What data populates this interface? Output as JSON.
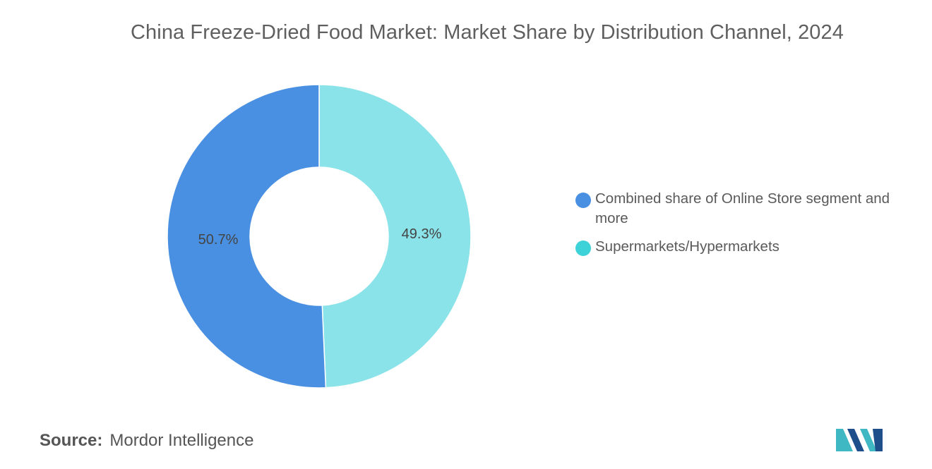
{
  "title": "China Freeze-Dried Food Market: Market Share by Distribution Channel, 2024",
  "chart_data": {
    "type": "pie",
    "variant": "donut",
    "title": "China Freeze-Dried Food Market: Market Share by Distribution Channel, 2024",
    "slices": [
      {
        "label": "Supermarkets/Hypermarkets",
        "value": 49.3,
        "value_label": "49.3%",
        "color": "#8ae3e8"
      },
      {
        "label": "Combined share of Online Store segment and more",
        "value": 50.7,
        "value_label": "50.7%",
        "color": "#4a90e2"
      }
    ],
    "legend_position": "right"
  },
  "legend": [
    {
      "label": "Combined share of Online Store segment and more",
      "color": "#4a90e2"
    },
    {
      "label": "Supermarkets/Hypermarkets",
      "color": "#3dd1d8"
    }
  ],
  "source": {
    "label": "Source:",
    "value": "Mordor Intelligence"
  },
  "logo": {
    "name": "mordor-intelligence-logo",
    "color_dark": "#1f4f8a",
    "color_light": "#3fb8c4"
  }
}
